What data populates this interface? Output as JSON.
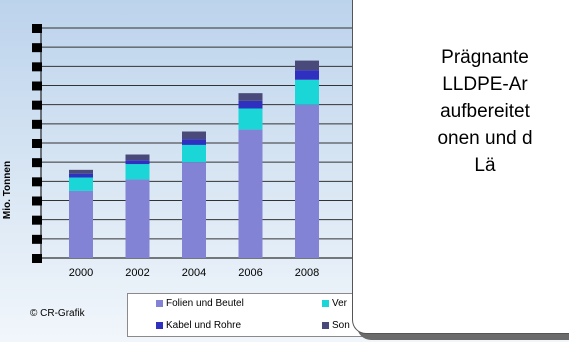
{
  "chart_data": {
    "type": "bar",
    "stacked": true,
    "categories": [
      "2000",
      "2002",
      "2004",
      "2006",
      "2008"
    ],
    "series": [
      {
        "name": "Folien und Beutel",
        "color": "#8383d6",
        "values": [
          3.5,
          4.1,
          5.0,
          6.7,
          8.0
        ]
      },
      {
        "name": "Ver",
        "color": "#1ad6d6",
        "values": [
          0.7,
          0.8,
          0.9,
          1.1,
          1.3
        ]
      },
      {
        "name": "Kabel und Rohre",
        "color": "#3030c0",
        "values": [
          0.2,
          0.2,
          0.3,
          0.4,
          0.5
        ]
      },
      {
        "name": "Son",
        "color": "#4a4a7a",
        "values": [
          0.2,
          0.3,
          0.4,
          0.4,
          0.5
        ]
      }
    ],
    "xlabel": "",
    "ylabel": "Mio. Tonnen",
    "ylim": [
      0,
      12
    ],
    "grid": true,
    "legend": "bottom"
  },
  "copyright": "© CR-Grafik",
  "callout_text": "Prägnante\nLLDPE-Ar\naufbereitet\nonen und d\nLä"
}
